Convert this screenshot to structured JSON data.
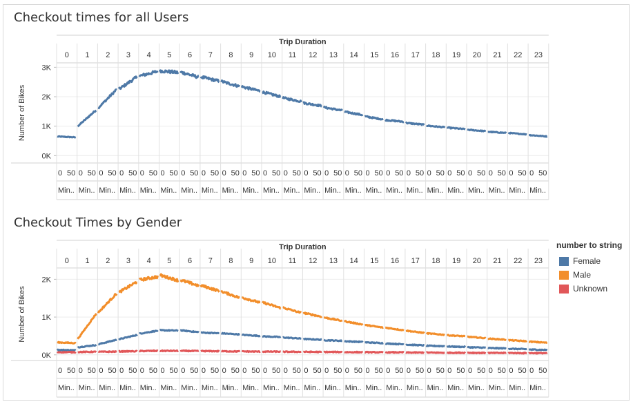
{
  "dashboard": {
    "charts": [
      {
        "title": "Checkout times for all Users"
      },
      {
        "title": "Checkout Times by Gender"
      }
    ],
    "legend": {
      "title": "number to string",
      "items": [
        {
          "label": "Female",
          "color": "#4e79a7"
        },
        {
          "label": "Male",
          "color": "#f28e2b"
        },
        {
          "label": "Unknown",
          "color": "#e15759"
        }
      ]
    }
  },
  "chart_data": [
    {
      "type": "line",
      "title": "Checkout times for all Users",
      "column_header": "Trip Duration",
      "columns": [
        "0",
        "1",
        "2",
        "3",
        "4",
        "5",
        "6",
        "7",
        "8",
        "9",
        "10",
        "11",
        "12",
        "13",
        "14",
        "15",
        "16",
        "17",
        "18",
        "19",
        "20",
        "21",
        "22",
        "23"
      ],
      "sub_ticks": [
        "0",
        "50"
      ],
      "sub_label": "Min..",
      "ylabel": "Number of Bikes",
      "yticks": [
        "0K",
        "1K",
        "2K",
        "3K"
      ],
      "ylim": [
        -250,
        3150
      ],
      "x_unit": "minutes since start of hour, per hour panel",
      "series": [
        {
          "color": "#4e79a7",
          "hours": [
            [
              650,
              620
            ],
            [
              1000,
              1550
            ],
            [
              1620,
              2250
            ],
            [
              2250,
              2680
            ],
            [
              2700,
              2860
            ],
            [
              2880,
              2820
            ],
            [
              2840,
              2660
            ],
            [
              2670,
              2530
            ],
            [
              2520,
              2350
            ],
            [
              2340,
              2190
            ],
            [
              2160,
              2000
            ],
            [
              1960,
              1840
            ],
            [
              1790,
              1690
            ],
            [
              1640,
              1530
            ],
            [
              1490,
              1380
            ],
            [
              1330,
              1230
            ],
            [
              1210,
              1150
            ],
            [
              1110,
              1050
            ],
            [
              1020,
              960
            ],
            [
              950,
              900
            ],
            [
              880,
              830
            ],
            [
              810,
              770
            ],
            [
              770,
              720
            ],
            [
              700,
              650
            ]
          ]
        }
      ]
    },
    {
      "type": "line",
      "title": "Checkout Times by Gender",
      "column_header": "Trip Duration",
      "columns": [
        "0",
        "1",
        "2",
        "3",
        "4",
        "5",
        "6",
        "7",
        "8",
        "9",
        "10",
        "11",
        "12",
        "13",
        "14",
        "15",
        "16",
        "17",
        "18",
        "19",
        "20",
        "21",
        "22",
        "23"
      ],
      "sub_ticks": [
        "0",
        "50"
      ],
      "sub_label": "Min..",
      "ylabel": "Number of Bikes",
      "yticks": [
        "0K",
        "1K",
        "2K"
      ],
      "ylim": [
        -150,
        2300
      ],
      "x_unit": "minutes since start of hour, per hour panel",
      "series": [
        {
          "name": "Female",
          "color": "#4e79a7",
          "hours": [
            [
              130,
              120
            ],
            [
              200,
              260
            ],
            [
              280,
              400
            ],
            [
              410,
              530
            ],
            [
              560,
              640
            ],
            [
              650,
              640
            ],
            [
              650,
              600
            ],
            [
              590,
              570
            ],
            [
              570,
              540
            ],
            [
              530,
              500
            ],
            [
              490,
              470
            ],
            [
              460,
              430
            ],
            [
              420,
              400
            ],
            [
              390,
              370
            ],
            [
              360,
              340
            ],
            [
              330,
              310
            ],
            [
              300,
              280
            ],
            [
              270,
              250
            ],
            [
              240,
              230
            ],
            [
              220,
              210
            ],
            [
              200,
              190
            ],
            [
              180,
              170
            ],
            [
              160,
              150
            ],
            [
              140,
              130
            ]
          ]
        },
        {
          "name": "Male",
          "color": "#f28e2b",
          "hours": [
            [
              330,
              310
            ],
            [
              420,
              1090
            ],
            [
              1120,
              1630
            ],
            [
              1650,
              1940
            ],
            [
              1980,
              2070
            ],
            [
              2110,
              1970
            ],
            [
              1980,
              1830
            ],
            [
              1840,
              1690
            ],
            [
              1680,
              1510
            ],
            [
              1520,
              1380
            ],
            [
              1390,
              1240
            ],
            [
              1250,
              1110
            ],
            [
              1110,
              1010
            ],
            [
              990,
              900
            ],
            [
              890,
              800
            ],
            [
              790,
              720
            ],
            [
              720,
              650
            ],
            [
              640,
              580
            ],
            [
              570,
              530
            ],
            [
              520,
              490
            ],
            [
              480,
              440
            ],
            [
              430,
              400
            ],
            [
              390,
              360
            ],
            [
              350,
              320
            ]
          ]
        },
        {
          "name": "Unknown",
          "color": "#e15759",
          "hours": [
            [
              70,
              70
            ],
            [
              75,
              80
            ],
            [
              80,
              85
            ],
            [
              90,
              95
            ],
            [
              100,
              105
            ],
            [
              105,
              105
            ],
            [
              105,
              100
            ],
            [
              100,
              95
            ],
            [
              95,
              90
            ],
            [
              90,
              85
            ],
            [
              85,
              85
            ],
            [
              80,
              80
            ],
            [
              80,
              75
            ],
            [
              75,
              75
            ],
            [
              70,
              70
            ],
            [
              70,
              65
            ],
            [
              65,
              65
            ],
            [
              60,
              60
            ],
            [
              60,
              55
            ],
            [
              55,
              55
            ],
            [
              55,
              50
            ],
            [
              50,
              50
            ],
            [
              50,
              45
            ],
            [
              45,
              45
            ]
          ]
        }
      ]
    }
  ]
}
